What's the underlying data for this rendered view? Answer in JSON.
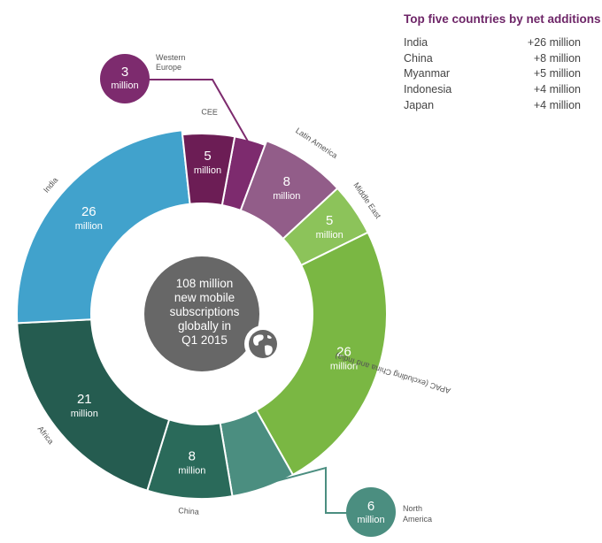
{
  "side_panel": {
    "title": "Top five countries by net additions",
    "rows": [
      {
        "country": "India",
        "value": "+26 million"
      },
      {
        "country": "China",
        "value": "+8 million"
      },
      {
        "country": "Myanmar",
        "value": "+5 million"
      },
      {
        "country": "Indonesia",
        "value": "+4 million"
      },
      {
        "country": "Japan",
        "value": "+4 million"
      }
    ]
  },
  "center": {
    "lines": [
      "108 million",
      "new mobile",
      "subscriptions",
      "globally in",
      "Q1 2015"
    ],
    "icon": "globe-icon"
  },
  "chart_data": {
    "type": "pie",
    "variant": "donut",
    "total": 108,
    "unit": "million",
    "slices": [
      {
        "label": "Western Europe",
        "value": 3,
        "display": "3",
        "color": "#7d2b6e",
        "callout": true
      },
      {
        "label": "Latin America",
        "value": 8,
        "display": "8",
        "color": "#925d89"
      },
      {
        "label": "Middle East",
        "value": 5,
        "display": "5",
        "color": "#8cc35a"
      },
      {
        "label": "APAC (excluding China and India)",
        "value": 26,
        "display": "26",
        "color": "#7ab743"
      },
      {
        "label": "North America",
        "value": 6,
        "display": "6",
        "color": "#4b8e80",
        "callout": true
      },
      {
        "label": "China",
        "value": 8,
        "display": "8",
        "color": "#2a6a5a"
      },
      {
        "label": "Africa",
        "value": 21,
        "display": "21",
        "color": "#255c50"
      },
      {
        "label": "India",
        "value": 26,
        "display": "26",
        "color": "#41a2cc"
      },
      {
        "label": "CEE",
        "value": 5,
        "display": "5",
        "color": "#6c1d55"
      }
    ],
    "callout_colors": {
      "Western Europe": "#7d2b6e",
      "North America": "#4b8e80"
    },
    "center_color": "#676767"
  }
}
